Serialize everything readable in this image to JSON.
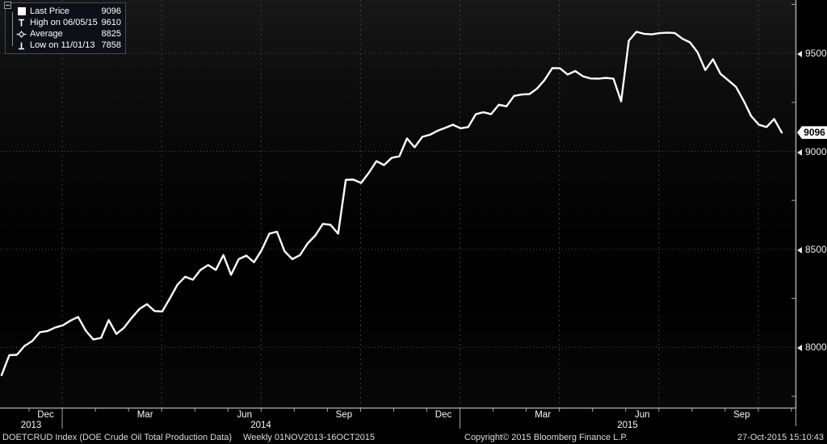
{
  "legend": {
    "rows": [
      {
        "marker": "last-price-square-icon",
        "label": "Last Price",
        "value": "9096"
      },
      {
        "marker": "high-tick-icon",
        "label": "High on 06/05/15",
        "value": "9610"
      },
      {
        "marker": "average-diamond-icon",
        "label": "Average",
        "value": "8825"
      },
      {
        "marker": "low-tick-icon",
        "label": "Low on 11/01/13",
        "value": "7858"
      }
    ]
  },
  "chart_data": {
    "type": "line",
    "title": "DOETCRUD Index (DOE Crude Oil Total Production Data)",
    "subtitle": "Weekly 01NOV2013-16OCT2015",
    "x_start": "01NOV2013",
    "x_end": "16OCT2015",
    "frequency": "Weekly",
    "last_price": 9096,
    "high": 9610,
    "high_date": "06/05/15",
    "average": 8825,
    "low": 7858,
    "low_date": "11/01/13",
    "ylim": [
      7690,
      9780
    ],
    "yticks": [
      9500,
      9000,
      8500,
      8000
    ],
    "yticks_minor": [
      9750,
      9250,
      8750,
      8250,
      7750
    ],
    "grid": "dotted",
    "line_color": "#ffffff",
    "month_labels": [
      "Dec",
      "Mar",
      "Jun",
      "Sep",
      "Dec",
      "Mar",
      "Jun",
      "Sep"
    ],
    "year_labels": [
      "2013",
      "2014",
      "2015"
    ],
    "series": [
      {
        "name": "Last Price",
        "values": [
          7858,
          7960,
          7962,
          8007,
          8032,
          8077,
          8083,
          8101,
          8112,
          8136,
          8155,
          8085,
          8040,
          8048,
          8139,
          8068,
          8100,
          8150,
          8195,
          8220,
          8185,
          8183,
          8250,
          8320,
          8360,
          8345,
          8395,
          8420,
          8395,
          8471,
          8370,
          8450,
          8468,
          8434,
          8496,
          8580,
          8590,
          8490,
          8450,
          8470,
          8530,
          8570,
          8630,
          8625,
          8580,
          8855,
          8856,
          8839,
          8890,
          8950,
          8930,
          8967,
          8975,
          9066,
          9021,
          9074,
          9085,
          9105,
          9120,
          9136,
          9118,
          9124,
          9190,
          9200,
          9190,
          9238,
          9230,
          9283,
          9290,
          9292,
          9320,
          9365,
          9425,
          9424,
          9392,
          9410,
          9383,
          9372,
          9371,
          9375,
          9371,
          9255,
          9565,
          9610,
          9600,
          9597,
          9603,
          9606,
          9604,
          9575,
          9556,
          9505,
          9415,
          9470,
          9395,
          9363,
          9330,
          9260,
          9180,
          9136,
          9124,
          9165,
          9096
        ]
      }
    ]
  },
  "footer": {
    "instrument": "DOETCRUD Index (DOE Crude Oil Total Production Data)",
    "period": "Weekly 01NOV2013-16OCT2015",
    "copyright": "Copyright© 2015 Bloomberg Finance L.P.",
    "timestamp": "27-Oct-2015 15:10:43"
  },
  "colors": {
    "background": "#000000",
    "line": "#ffffff",
    "axis": "#a0a0a0",
    "badge_bg": "#ffffff",
    "badge_text": "#000000"
  }
}
